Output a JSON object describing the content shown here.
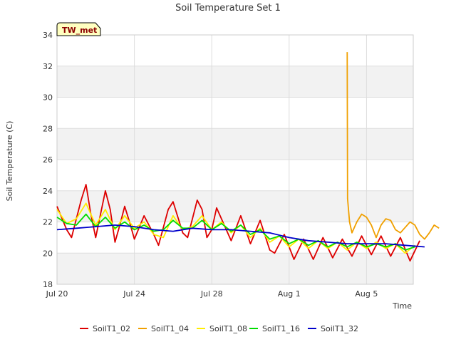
{
  "chart_data": {
    "type": "line",
    "title": "Soil Temperature Set 1",
    "xlabel": "Time",
    "ylabel": "Soil Temperature (C)",
    "badge": "TW_met",
    "x_domain": [
      "2024-07-20",
      "2024-08-07"
    ],
    "x_ticks": [
      "Jul 20",
      "Jul 24",
      "Jul 28",
      "Aug 1",
      "Aug 5"
    ],
    "y_ticks": [
      18,
      20,
      22,
      24,
      26,
      28,
      30,
      32,
      34
    ],
    "ylim": [
      18,
      34
    ],
    "grid": true,
    "legend_position": "bottom",
    "colors": {
      "band": "#f2f2f2",
      "grid": "#dddddd",
      "badge_fill": "#ffffc0"
    },
    "series": [
      {
        "name": "SoilT1_02",
        "color": "#dd0000",
        "points": [
          [
            "2024-07-20 00:00",
            23.0
          ],
          [
            "2024-07-20 12:00",
            21.5
          ],
          [
            "2024-07-20 18:00",
            21.0
          ],
          [
            "2024-07-21 06:00",
            23.4
          ],
          [
            "2024-07-21 12:00",
            24.4
          ],
          [
            "2024-07-21 18:00",
            22.5
          ],
          [
            "2024-07-22 00:00",
            21.0
          ],
          [
            "2024-07-22 06:00",
            22.5
          ],
          [
            "2024-07-22 12:00",
            24.0
          ],
          [
            "2024-07-22 18:00",
            22.8
          ],
          [
            "2024-07-23 00:00",
            20.7
          ],
          [
            "2024-07-23 06:00",
            21.8
          ],
          [
            "2024-07-23 12:00",
            23.0
          ],
          [
            "2024-07-23 18:00",
            22.0
          ],
          [
            "2024-07-24 00:00",
            20.9
          ],
          [
            "2024-07-24 12:00",
            22.4
          ],
          [
            "2024-07-25 00:00",
            21.2
          ],
          [
            "2024-07-25 06:00",
            20.5
          ],
          [
            "2024-07-25 18:00",
            22.8
          ],
          [
            "2024-07-26 00:00",
            23.3
          ],
          [
            "2024-07-26 12:00",
            21.3
          ],
          [
            "2024-07-26 18:00",
            21.0
          ],
          [
            "2024-07-27 06:00",
            23.4
          ],
          [
            "2024-07-27 12:00",
            22.8
          ],
          [
            "2024-07-27 18:00",
            21.0
          ],
          [
            "2024-07-28 00:00",
            21.5
          ],
          [
            "2024-07-28 06:00",
            22.9
          ],
          [
            "2024-07-28 18:00",
            21.5
          ],
          [
            "2024-07-29 00:00",
            20.8
          ],
          [
            "2024-07-29 12:00",
            22.4
          ],
          [
            "2024-07-30 00:00",
            20.6
          ],
          [
            "2024-07-30 12:00",
            22.1
          ],
          [
            "2024-07-31 00:00",
            20.2
          ],
          [
            "2024-07-31 06:00",
            20.0
          ],
          [
            "2024-07-31 18:00",
            21.2
          ],
          [
            "2024-08-01 06:00",
            19.6
          ],
          [
            "2024-08-01 18:00",
            20.9
          ],
          [
            "2024-08-02 06:00",
            19.6
          ],
          [
            "2024-08-02 18:00",
            21.0
          ],
          [
            "2024-08-03 06:00",
            19.7
          ],
          [
            "2024-08-03 18:00",
            20.9
          ],
          [
            "2024-08-04 06:00",
            19.8
          ],
          [
            "2024-08-04 18:00",
            21.1
          ],
          [
            "2024-08-05 06:00",
            19.9
          ],
          [
            "2024-08-05 18:00",
            21.1
          ],
          [
            "2024-08-06 06:00",
            19.8
          ],
          [
            "2024-08-06 18:00",
            21.0
          ],
          [
            "2024-08-07 06:00",
            19.5
          ],
          [
            "2024-08-07 18:00",
            20.8
          ]
        ]
      },
      {
        "name": "SoilT1_04",
        "color": "#f0a000",
        "points": [
          [
            "2024-08-04 00:00",
            32.9
          ],
          [
            "2024-08-04 00:30",
            23.5
          ],
          [
            "2024-08-04 03:00",
            22.0
          ],
          [
            "2024-08-04 06:00",
            21.3
          ],
          [
            "2024-08-04 12:00",
            22.0
          ],
          [
            "2024-08-04 18:00",
            22.5
          ],
          [
            "2024-08-05 00:00",
            22.3
          ],
          [
            "2024-08-05 06:00",
            21.8
          ],
          [
            "2024-08-05 12:00",
            21.0
          ],
          [
            "2024-08-05 18:00",
            21.8
          ],
          [
            "2024-08-06 00:00",
            22.2
          ],
          [
            "2024-08-06 06:00",
            22.1
          ],
          [
            "2024-08-06 12:00",
            21.5
          ],
          [
            "2024-08-06 18:00",
            21.3
          ],
          [
            "2024-08-07 06:00",
            22.0
          ],
          [
            "2024-08-07 12:00",
            21.8
          ],
          [
            "2024-08-07 18:00",
            21.2
          ],
          [
            "2024-08-08 00:00",
            20.9
          ],
          [
            "2024-08-08 06:00",
            21.3
          ],
          [
            "2024-08-08 12:00",
            21.8
          ],
          [
            "2024-08-08 18:00",
            21.6
          ]
        ]
      },
      {
        "name": "SoilT1_08",
        "color": "#ffee00",
        "points": [
          [
            "2024-07-20 00:00",
            22.8
          ],
          [
            "2024-07-20 12:00",
            21.9
          ],
          [
            "2024-07-21 00:00",
            22.2
          ],
          [
            "2024-07-21 12:00",
            23.2
          ],
          [
            "2024-07-22 00:00",
            21.8
          ],
          [
            "2024-07-22 12:00",
            22.8
          ],
          [
            "2024-07-23 00:00",
            21.5
          ],
          [
            "2024-07-23 12:00",
            22.4
          ],
          [
            "2024-07-24 00:00",
            21.6
          ],
          [
            "2024-07-24 12:00",
            22.0
          ],
          [
            "2024-07-25 00:00",
            21.2
          ],
          [
            "2024-07-25 12:00",
            21.0
          ],
          [
            "2024-07-26 00:00",
            22.4
          ],
          [
            "2024-07-26 12:00",
            21.5
          ],
          [
            "2024-07-27 00:00",
            21.7
          ],
          [
            "2024-07-27 12:00",
            22.4
          ],
          [
            "2024-07-28 00:00",
            21.5
          ],
          [
            "2024-07-28 12:00",
            22.0
          ],
          [
            "2024-07-29 00:00",
            21.3
          ],
          [
            "2024-07-29 12:00",
            21.8
          ],
          [
            "2024-07-30 00:00",
            21.0
          ],
          [
            "2024-07-30 12:00",
            21.6
          ],
          [
            "2024-07-31 00:00",
            20.7
          ],
          [
            "2024-07-31 12:00",
            21.1
          ],
          [
            "2024-08-01 00:00",
            20.4
          ],
          [
            "2024-08-01 12:00",
            20.9
          ],
          [
            "2024-08-02 00:00",
            20.3
          ],
          [
            "2024-08-02 12:00",
            20.8
          ],
          [
            "2024-08-03 00:00",
            20.3
          ],
          [
            "2024-08-03 12:00",
            20.7
          ],
          [
            "2024-08-04 00:00",
            20.2
          ],
          [
            "2024-08-04 12:00",
            20.7
          ],
          [
            "2024-08-05 00:00",
            20.3
          ],
          [
            "2024-08-05 12:00",
            20.7
          ],
          [
            "2024-08-06 00:00",
            20.3
          ],
          [
            "2024-08-06 12:00",
            20.6
          ],
          [
            "2024-08-07 00:00",
            20.0
          ],
          [
            "2024-08-07 12:00",
            20.5
          ]
        ]
      },
      {
        "name": "SoilT1_16",
        "color": "#00dd00",
        "points": [
          [
            "2024-07-20 00:00",
            22.3
          ],
          [
            "2024-07-20 12:00",
            21.9
          ],
          [
            "2024-07-21 00:00",
            21.8
          ],
          [
            "2024-07-21 12:00",
            22.5
          ],
          [
            "2024-07-22 00:00",
            21.7
          ],
          [
            "2024-07-22 12:00",
            22.3
          ],
          [
            "2024-07-23 00:00",
            21.6
          ],
          [
            "2024-07-23 12:00",
            22.0
          ],
          [
            "2024-07-24 00:00",
            21.5
          ],
          [
            "2024-07-24 12:00",
            21.8
          ],
          [
            "2024-07-25 00:00",
            21.4
          ],
          [
            "2024-07-25 12:00",
            21.5
          ],
          [
            "2024-07-26 00:00",
            22.1
          ],
          [
            "2024-07-26 12:00",
            21.6
          ],
          [
            "2024-07-27 00:00",
            21.6
          ],
          [
            "2024-07-27 12:00",
            22.1
          ],
          [
            "2024-07-28 00:00",
            21.5
          ],
          [
            "2024-07-28 12:00",
            21.9
          ],
          [
            "2024-07-29 00:00",
            21.4
          ],
          [
            "2024-07-29 12:00",
            21.8
          ],
          [
            "2024-07-30 00:00",
            21.2
          ],
          [
            "2024-07-30 12:00",
            21.5
          ],
          [
            "2024-07-31 00:00",
            20.9
          ],
          [
            "2024-07-31 12:00",
            21.1
          ],
          [
            "2024-08-01 00:00",
            20.6
          ],
          [
            "2024-08-01 12:00",
            20.9
          ],
          [
            "2024-08-02 00:00",
            20.5
          ],
          [
            "2024-08-02 12:00",
            20.8
          ],
          [
            "2024-08-03 00:00",
            20.4
          ],
          [
            "2024-08-03 12:00",
            20.7
          ],
          [
            "2024-08-04 00:00",
            20.4
          ],
          [
            "2024-08-04 12:00",
            20.7
          ],
          [
            "2024-08-05 00:00",
            20.4
          ],
          [
            "2024-08-05 12:00",
            20.6
          ],
          [
            "2024-08-06 00:00",
            20.4
          ],
          [
            "2024-08-06 12:00",
            20.6
          ],
          [
            "2024-08-07 00:00",
            20.2
          ],
          [
            "2024-08-07 12:00",
            20.4
          ]
        ]
      },
      {
        "name": "SoilT1_32",
        "color": "#0000cc",
        "points": [
          [
            "2024-07-20 00:00",
            21.5
          ],
          [
            "2024-07-21 00:00",
            21.6
          ],
          [
            "2024-07-22 00:00",
            21.7
          ],
          [
            "2024-07-23 00:00",
            21.8
          ],
          [
            "2024-07-24 00:00",
            21.7
          ],
          [
            "2024-07-25 00:00",
            21.5
          ],
          [
            "2024-07-26 00:00",
            21.4
          ],
          [
            "2024-07-27 00:00",
            21.6
          ],
          [
            "2024-07-28 00:00",
            21.5
          ],
          [
            "2024-07-29 00:00",
            21.5
          ],
          [
            "2024-07-30 00:00",
            21.4
          ],
          [
            "2024-07-31 00:00",
            21.3
          ],
          [
            "2024-08-01 00:00",
            21.0
          ],
          [
            "2024-08-02 00:00",
            20.8
          ],
          [
            "2024-08-03 00:00",
            20.7
          ],
          [
            "2024-08-04 00:00",
            20.6
          ],
          [
            "2024-08-05 00:00",
            20.6
          ],
          [
            "2024-08-06 00:00",
            20.6
          ],
          [
            "2024-08-07 00:00",
            20.5
          ],
          [
            "2024-08-08 00:00",
            20.4
          ]
        ]
      }
    ]
  }
}
